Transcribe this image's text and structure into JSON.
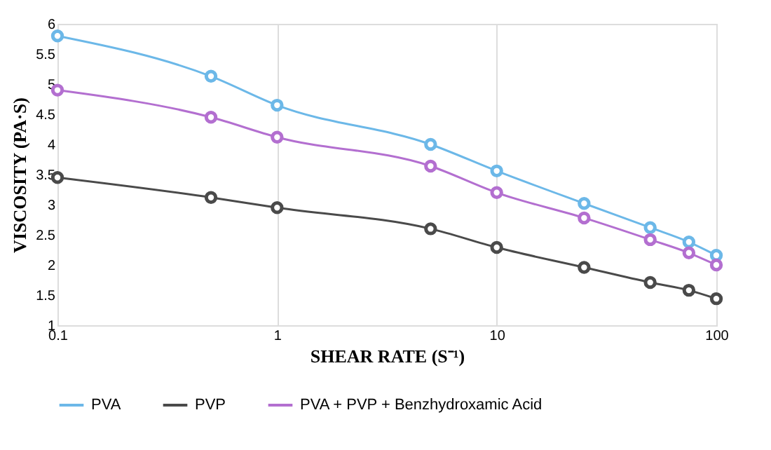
{
  "chart_data": {
    "type": "line",
    "xlabel": "SHEAR RATE (S⁻¹)",
    "ylabel": "VISCOSITY (PA·S)",
    "x": [
      0.1,
      0.5,
      1,
      5,
      10,
      25,
      50,
      75,
      100
    ],
    "series": [
      {
        "name": "PVA",
        "color": "#6cb8e8",
        "values": [
          5.8,
          5.13,
          4.65,
          4.0,
          3.56,
          3.02,
          2.62,
          2.38,
          2.16
        ]
      },
      {
        "name": "PVP",
        "color": "#4a4a4a",
        "values": [
          3.45,
          3.12,
          2.95,
          2.6,
          2.29,
          1.96,
          1.71,
          1.58,
          1.44
        ]
      },
      {
        "name": "PVA + PVP + Benzhydroxamic Acid",
        "color": "#b36fd0",
        "values": [
          4.9,
          4.45,
          4.12,
          3.64,
          3.2,
          2.78,
          2.42,
          2.2,
          2.0
        ]
      }
    ],
    "log": "x",
    "xlim": [
      0.1,
      100
    ],
    "xticks": [
      0.1,
      1,
      10,
      100
    ],
    "ylim": [
      1,
      6
    ],
    "yticks": [
      1,
      1.5,
      2,
      2.5,
      3,
      3.5,
      4,
      4.5,
      5,
      5.5,
      6
    ],
    "grid": "x",
    "legend": "bottom",
    "marker": "circle",
    "line_style": "solid"
  }
}
